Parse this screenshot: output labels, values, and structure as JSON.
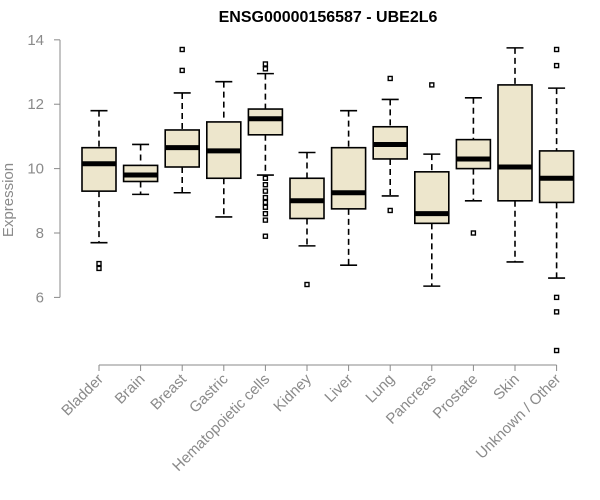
{
  "chart_data": {
    "type": "boxplot",
    "title": "ENSG00000156587 - UBE2L6",
    "xlabel": "",
    "ylabel": "Expression",
    "ylim": [
      3.9,
      14.15
    ],
    "yticks": [
      6,
      8,
      10,
      12,
      14
    ],
    "box_fill": "#ede6cc",
    "series": [
      {
        "name": "Bladder",
        "min": 7.7,
        "q1": 9.3,
        "median": 10.15,
        "q3": 10.65,
        "max": 11.8,
        "outliers": [
          7.05,
          6.9
        ]
      },
      {
        "name": "Brain",
        "min": 9.2,
        "q1": 9.6,
        "median": 9.8,
        "q3": 10.1,
        "max": 10.75,
        "outliers": []
      },
      {
        "name": "Breast",
        "min": 9.25,
        "q1": 10.05,
        "median": 10.65,
        "q3": 11.2,
        "max": 12.35,
        "outliers": [
          13.05,
          13.7
        ]
      },
      {
        "name": "Gastric",
        "min": 8.5,
        "q1": 9.7,
        "median": 10.55,
        "q3": 11.45,
        "max": 12.7,
        "outliers": []
      },
      {
        "name": "Hematopoietic cells",
        "min": 9.8,
        "q1": 11.05,
        "median": 11.55,
        "q3": 11.85,
        "max": 12.95,
        "outliers": [
          13.25,
          13.1,
          9.7,
          9.5,
          9.3,
          9.1,
          8.95,
          8.8,
          8.6,
          8.4,
          7.9
        ]
      },
      {
        "name": "Kidney",
        "min": 7.6,
        "q1": 8.45,
        "median": 9.0,
        "q3": 9.7,
        "max": 10.5,
        "outliers": [
          6.4
        ]
      },
      {
        "name": "Liver",
        "min": 7.0,
        "q1": 8.75,
        "median": 9.25,
        "q3": 10.65,
        "max": 11.8,
        "outliers": []
      },
      {
        "name": "Lung",
        "min": 9.15,
        "q1": 10.3,
        "median": 10.75,
        "q3": 11.3,
        "max": 12.15,
        "outliers": [
          12.8,
          8.7
        ]
      },
      {
        "name": "Pancreas",
        "min": 6.35,
        "q1": 8.3,
        "median": 8.6,
        "q3": 9.9,
        "max": 10.45,
        "outliers": [
          12.6
        ]
      },
      {
        "name": "Prostate",
        "min": 9.0,
        "q1": 10.0,
        "median": 10.3,
        "q3": 10.9,
        "max": 12.2,
        "outliers": [
          8.0
        ]
      },
      {
        "name": "Skin",
        "min": 7.1,
        "q1": 9.0,
        "median": 10.05,
        "q3": 12.6,
        "max": 13.75,
        "outliers": []
      },
      {
        "name": "Unknown / Other",
        "min": 6.6,
        "q1": 8.95,
        "median": 9.7,
        "q3": 10.55,
        "max": 12.5,
        "outliers": [
          13.7,
          13.2,
          6.0,
          5.55,
          4.35
        ]
      }
    ]
  }
}
